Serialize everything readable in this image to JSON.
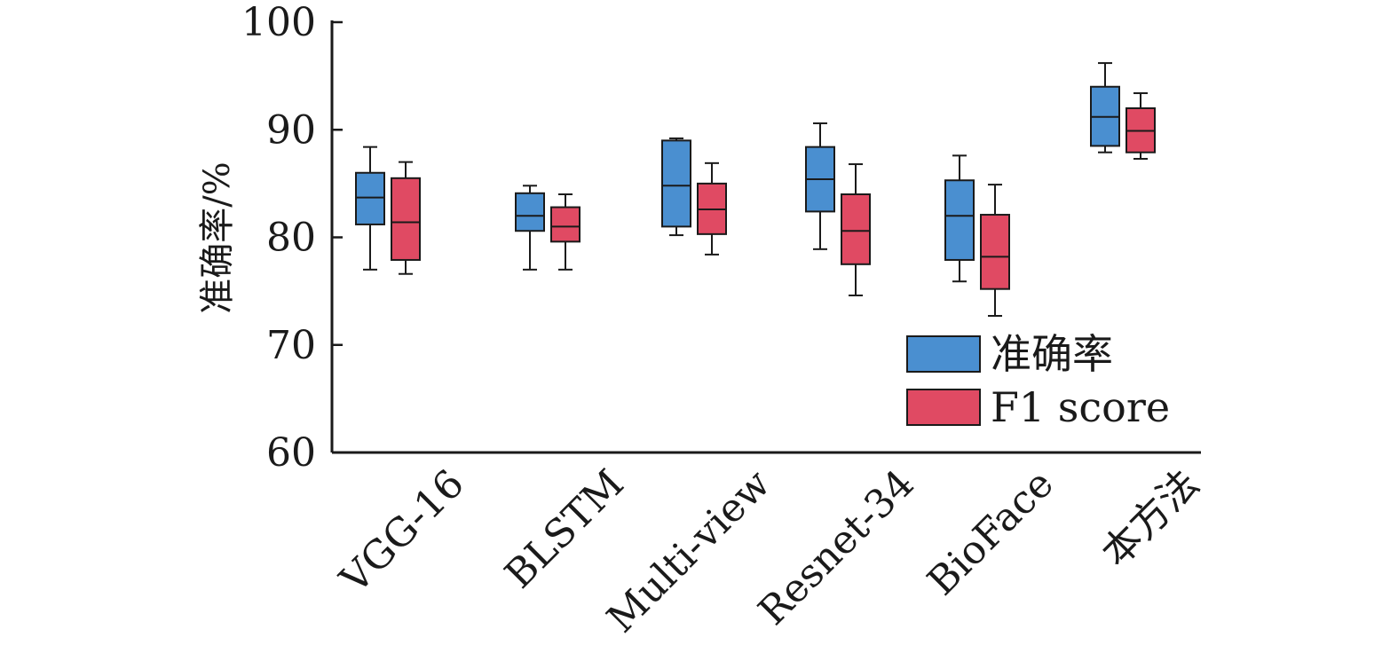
{
  "chart_data": {
    "type": "boxplot",
    "title": "",
    "xlabel": "",
    "ylabel": "准确率/%",
    "ylim": [
      60,
      100
    ],
    "yticks": [
      60,
      70,
      80,
      90,
      100
    ],
    "categories": [
      "VGG-16",
      "BLSTM",
      "Multi-view",
      "Resnet-34",
      "BioFace",
      "本方法"
    ],
    "legend_position": "bottom-right",
    "series": [
      {
        "name": "准确率",
        "color": "#4a8fd0",
        "boxes": [
          {
            "min": 77.0,
            "q1": 81.2,
            "median": 83.7,
            "q3": 86.0,
            "max": 88.4
          },
          {
            "min": 77.0,
            "q1": 80.6,
            "median": 82.0,
            "q3": 84.1,
            "max": 84.8
          },
          {
            "min": 80.2,
            "q1": 81.0,
            "median": 84.8,
            "q3": 89.0,
            "max": 89.2
          },
          {
            "min": 78.9,
            "q1": 82.4,
            "median": 85.4,
            "q3": 88.4,
            "max": 90.6
          },
          {
            "min": 75.9,
            "q1": 77.9,
            "median": 82.0,
            "q3": 85.3,
            "max": 87.6
          },
          {
            "min": 87.9,
            "q1": 88.5,
            "median": 91.2,
            "q3": 94.0,
            "max": 96.2
          }
        ]
      },
      {
        "name": "F1 score",
        "color": "#e04a63",
        "boxes": [
          {
            "min": 76.6,
            "q1": 77.9,
            "median": 81.4,
            "q3": 85.5,
            "max": 87.0
          },
          {
            "min": 77.0,
            "q1": 79.6,
            "median": 81.0,
            "q3": 82.8,
            "max": 84.0
          },
          {
            "min": 78.4,
            "q1": 80.3,
            "median": 82.6,
            "q3": 85.0,
            "max": 86.9
          },
          {
            "min": 74.6,
            "q1": 77.5,
            "median": 80.6,
            "q3": 84.0,
            "max": 86.8
          },
          {
            "min": 72.7,
            "q1": 75.2,
            "median": 78.2,
            "q3": 82.1,
            "max": 84.9
          },
          {
            "min": 87.3,
            "q1": 87.9,
            "median": 89.9,
            "q3": 92.0,
            "max": 93.4
          }
        ]
      }
    ]
  }
}
